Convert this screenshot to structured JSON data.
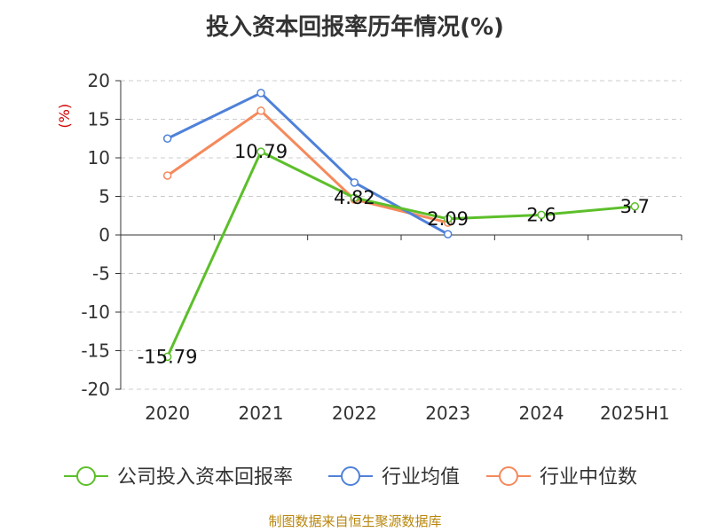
{
  "title": "投入资本回报率历年情况(%)",
  "source": "制图数据来自恒生聚源数据库",
  "chart_data": {
    "type": "line",
    "title": "投入资本回报率历年情况(%)",
    "ylabel": "(%)",
    "ylim": [
      -20,
      20
    ],
    "yticks": [
      20,
      15,
      10,
      5,
      0,
      -5,
      -10,
      -15,
      -20
    ],
    "categories": [
      "2020",
      "2021",
      "2022",
      "2023",
      "2024",
      "2025H1"
    ],
    "grid": true,
    "legend_position": "bottom",
    "series": [
      {
        "name": "公司投入资本回报率",
        "color": "#5cbf2a",
        "values": [
          -15.79,
          10.79,
          4.82,
          2.09,
          2.6,
          3.7
        ],
        "labels": [
          "-15.79",
          "10.79",
          "4.82",
          "2.09",
          "2.6",
          "3.7"
        ]
      },
      {
        "name": "行业均值",
        "color": "#4f81d9",
        "values": [
          12.5,
          18.4,
          6.8,
          0.1,
          null,
          null
        ]
      },
      {
        "name": "行业中位数",
        "color": "#f5895b",
        "values": [
          7.7,
          16.1,
          4.6,
          1.6,
          null,
          null
        ]
      }
    ]
  }
}
